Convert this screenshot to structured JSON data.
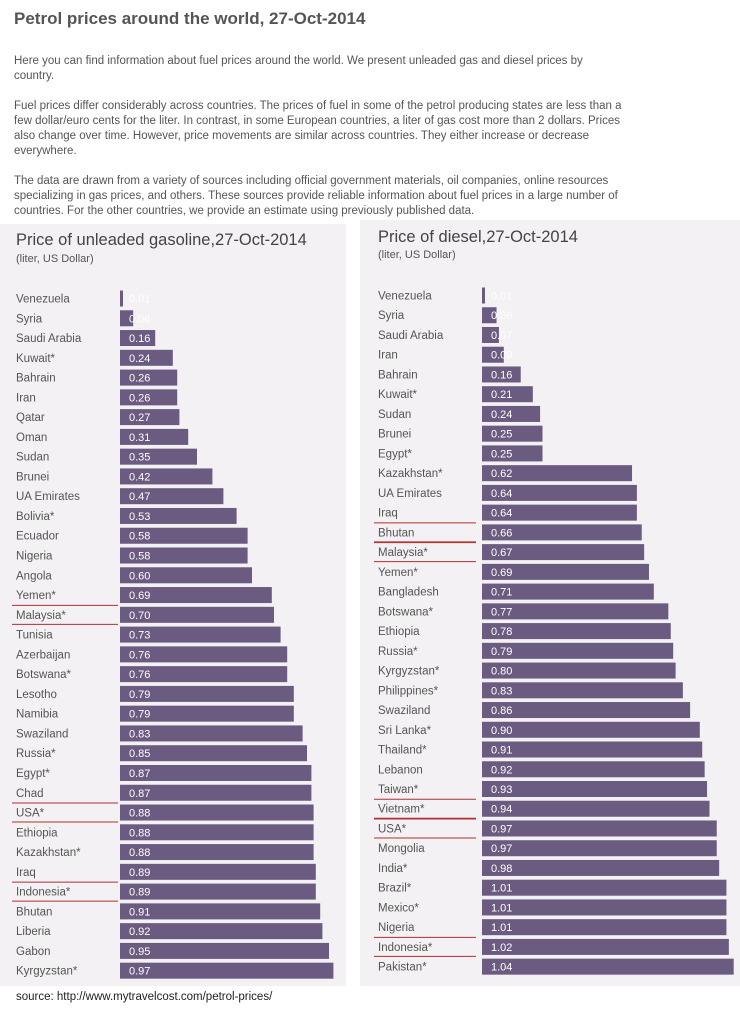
{
  "page": {
    "title": "Petrol prices around the world, 27-Oct-2014",
    "paragraphs": [
      "Here you can find information about fuel prices around the world. We present unleaded gas and diesel prices by country.",
      "Fuel prices differ considerably across countries. The prices of fuel in some of the petrol producing states are less than a few dollar/euro cents for the liter. In contrast, in some European countries, a liter of gas cost more than 2 dollars. Prices also change over time. However, price movements are similar across countries. They either increase or decrease everywhere.",
      "The data are drawn from a variety of sources including official government materials, oil companies, online resources specializing in gas prices, and others. These sources provide reliable information about fuel prices in a large number of countries. For the other countries, we provide an estimate using previously published data."
    ],
    "source": "source: http://www.mytravelcost.com/petrol-prices/"
  },
  "colors": {
    "bar": "#6b5b80",
    "bar_text": "#ffffff",
    "underline": "#b03030",
    "panel": "#f3f1f3"
  },
  "chart_data": [
    {
      "type": "bar",
      "orientation": "horizontal",
      "title": "Price of unleaded gasoline,27-Oct-2014",
      "subtitle": "(liter, US Dollar)",
      "categories": [
        "Venezuela",
        "Syria",
        "Saudi Arabia",
        "Kuwait*",
        "Bahrain",
        "Iran",
        "Qatar",
        "Oman",
        "Sudan",
        "Brunei",
        "UA Emirates",
        "Bolivia*",
        "Ecuador",
        "Nigeria",
        "Angola",
        "Yemen*",
        "Malaysia*",
        "Tunisia",
        "Azerbaijan",
        "Botswana*",
        "Lesotho",
        "Namibia",
        "Swaziland",
        "Russia*",
        "Egypt*",
        "Chad",
        "USA*",
        "Ethiopia",
        "Kazakhstan*",
        "Iraq",
        "Indonesia*",
        "Bhutan",
        "Liberia",
        "Gabon",
        "Kyrgyzstan*"
      ],
      "values": [
        0.01,
        0.06,
        0.16,
        0.24,
        0.26,
        0.26,
        0.27,
        0.31,
        0.35,
        0.42,
        0.47,
        0.53,
        0.58,
        0.58,
        0.6,
        0.69,
        0.7,
        0.73,
        0.76,
        0.76,
        0.79,
        0.79,
        0.83,
        0.85,
        0.87,
        0.87,
        0.88,
        0.88,
        0.88,
        0.89,
        0.89,
        0.91,
        0.92,
        0.95,
        0.97
      ],
      "labels": [
        "0.01",
        "0.06",
        "0.16",
        "0.24",
        "0.26",
        "0.26",
        "0.27",
        "0.31",
        "0.35",
        "0.42",
        "0.47",
        "0.53",
        "0.58",
        "0.58",
        "0.60",
        "0.69",
        "0.70",
        "0.73",
        "0.76",
        "0.76",
        "0.79",
        "0.79",
        "0.83",
        "0.85",
        "0.87",
        "0.87",
        "0.88",
        "0.88",
        "0.88",
        "0.89",
        "0.89",
        "0.91",
        "0.92",
        "0.95",
        "0.97"
      ],
      "highlighted": [
        "Malaysia*",
        "USA*",
        "Indonesia*"
      ]
    },
    {
      "type": "bar",
      "orientation": "horizontal",
      "title": "Price of diesel,27-Oct-2014",
      "subtitle": "(liter, US Dollar)",
      "categories": [
        "Venezuela",
        "Syria",
        "Saudi Arabia",
        "Iran",
        "Bahrain",
        "Kuwait*",
        "Sudan",
        "Brunei",
        "Egypt*",
        "Kazakhstan*",
        "UA Emirates",
        "Iraq",
        "Bhutan",
        "Malaysia*",
        "Yemen*",
        "Bangladesh",
        "Botswana*",
        "Ethiopia",
        "Russia*",
        "Kyrgyzstan*",
        "Philippines*",
        "Swaziland",
        "Sri Lanka*",
        "Thailand*",
        "Lebanon",
        "Taiwan*",
        "Vietnam*",
        "USA*",
        "Mongolia",
        "India*",
        "Brazil*",
        "Mexico*",
        "Nigeria",
        "Indonesia*",
        "Pakistan*"
      ],
      "values": [
        0.01,
        0.06,
        0.07,
        0.09,
        0.16,
        0.21,
        0.24,
        0.25,
        0.25,
        0.62,
        0.64,
        0.64,
        0.66,
        0.67,
        0.69,
        0.71,
        0.77,
        0.78,
        0.79,
        0.8,
        0.83,
        0.86,
        0.9,
        0.91,
        0.92,
        0.93,
        0.94,
        0.97,
        0.97,
        0.98,
        1.01,
        1.01,
        1.01,
        1.02,
        1.04
      ],
      "labels": [
        "0.01",
        "0.06",
        "0.07",
        "0.09",
        "0.16",
        "0.21",
        "0.24",
        "0.25",
        "0.25",
        "0.62",
        "0.64",
        "0.64",
        "0.66",
        "0.67",
        "0.69",
        "0.71",
        "0.77",
        "0.78",
        "0.79",
        "0.80",
        "0.83",
        "0.86",
        "0.90",
        "0.91",
        "0.92",
        "0.93",
        "0.94",
        "0.97",
        "0.97",
        "0.98",
        "1.01",
        "1.01",
        "1.01",
        "1.02",
        "1.04"
      ],
      "highlighted": [
        "Bhutan",
        "Malaysia*",
        "Vietnam*",
        "USA*",
        "Indonesia*"
      ]
    }
  ]
}
